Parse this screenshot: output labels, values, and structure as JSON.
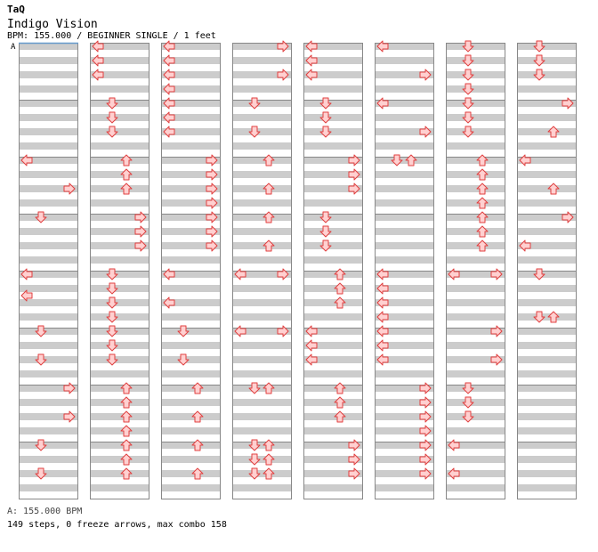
{
  "header": {
    "author": "TaQ",
    "title": "Indigo Vision",
    "meta": "BPM: 155.000 / BEGINNER SINGLE / 1 feet",
    "bpm_section_label": "A"
  },
  "footer": {
    "bpm_line": "A: 155.000 BPM",
    "stats": "149 steps, 0 freeze arrows, max combo 158"
  },
  "colors": {
    "stripe": "#cccccc",
    "border": "#888888",
    "arrow_fill": "#ffd0d0",
    "arrow_stroke": "#e04040",
    "bpm_marker": "#6699cc"
  },
  "arrow_legend": {
    "L": "left",
    "D": "down",
    "U": "up",
    "R": "right"
  },
  "chart_data": {
    "type": "table",
    "columns": 8,
    "measures_per_column": 8,
    "beats_per_measure": 4,
    "notes": [
      {
        "c": 0,
        "m": 2,
        "r": 0,
        "d": "L"
      },
      {
        "c": 0,
        "m": 2,
        "r": 4,
        "d": "R"
      },
      {
        "c": 0,
        "m": 3,
        "r": 0,
        "d": "D"
      },
      {
        "c": 0,
        "m": 4,
        "r": 0,
        "d": "L"
      },
      {
        "c": 0,
        "m": 4,
        "r": 3,
        "d": "L"
      },
      {
        "c": 0,
        "m": 5,
        "r": 0,
        "d": "D"
      },
      {
        "c": 0,
        "m": 5,
        "r": 4,
        "d": "D"
      },
      {
        "c": 0,
        "m": 6,
        "r": 0,
        "d": "R"
      },
      {
        "c": 0,
        "m": 6,
        "r": 4,
        "d": "R"
      },
      {
        "c": 0,
        "m": 7,
        "r": 0,
        "d": "D"
      },
      {
        "c": 0,
        "m": 7,
        "r": 4,
        "d": "D"
      },
      {
        "c": 1,
        "m": 0,
        "r": 0,
        "d": "L"
      },
      {
        "c": 1,
        "m": 0,
        "r": 2,
        "d": "L"
      },
      {
        "c": 1,
        "m": 0,
        "r": 4,
        "d": "L"
      },
      {
        "c": 1,
        "m": 1,
        "r": 0,
        "d": "D"
      },
      {
        "c": 1,
        "m": 1,
        "r": 2,
        "d": "D"
      },
      {
        "c": 1,
        "m": 1,
        "r": 4,
        "d": "D"
      },
      {
        "c": 1,
        "m": 2,
        "r": 0,
        "d": "U"
      },
      {
        "c": 1,
        "m": 2,
        "r": 2,
        "d": "U"
      },
      {
        "c": 1,
        "m": 2,
        "r": 4,
        "d": "U"
      },
      {
        "c": 1,
        "m": 3,
        "r": 0,
        "d": "R"
      },
      {
        "c": 1,
        "m": 3,
        "r": 2,
        "d": "R"
      },
      {
        "c": 1,
        "m": 3,
        "r": 4,
        "d": "R"
      },
      {
        "c": 1,
        "m": 4,
        "r": 0,
        "d": "D"
      },
      {
        "c": 1,
        "m": 4,
        "r": 2,
        "d": "D"
      },
      {
        "c": 1,
        "m": 4,
        "r": 4,
        "d": "D"
      },
      {
        "c": 1,
        "m": 4,
        "r": 6,
        "d": "D"
      },
      {
        "c": 1,
        "m": 5,
        "r": 0,
        "d": "D"
      },
      {
        "c": 1,
        "m": 5,
        "r": 2,
        "d": "D"
      },
      {
        "c": 1,
        "m": 5,
        "r": 4,
        "d": "D"
      },
      {
        "c": 1,
        "m": 6,
        "r": 0,
        "d": "U"
      },
      {
        "c": 1,
        "m": 6,
        "r": 2,
        "d": "U"
      },
      {
        "c": 1,
        "m": 6,
        "r": 4,
        "d": "U"
      },
      {
        "c": 1,
        "m": 6,
        "r": 6,
        "d": "U"
      },
      {
        "c": 1,
        "m": 7,
        "r": 0,
        "d": "U"
      },
      {
        "c": 1,
        "m": 7,
        "r": 2,
        "d": "U"
      },
      {
        "c": 1,
        "m": 7,
        "r": 4,
        "d": "U"
      },
      {
        "c": 2,
        "m": 0,
        "r": 0,
        "d": "L"
      },
      {
        "c": 2,
        "m": 0,
        "r": 2,
        "d": "L"
      },
      {
        "c": 2,
        "m": 0,
        "r": 4,
        "d": "L"
      },
      {
        "c": 2,
        "m": 0,
        "r": 6,
        "d": "L"
      },
      {
        "c": 2,
        "m": 1,
        "r": 0,
        "d": "L"
      },
      {
        "c": 2,
        "m": 1,
        "r": 2,
        "d": "L"
      },
      {
        "c": 2,
        "m": 1,
        "r": 4,
        "d": "L"
      },
      {
        "c": 2,
        "m": 2,
        "r": 0,
        "d": "R"
      },
      {
        "c": 2,
        "m": 2,
        "r": 2,
        "d": "R"
      },
      {
        "c": 2,
        "m": 2,
        "r": 4,
        "d": "R"
      },
      {
        "c": 2,
        "m": 2,
        "r": 6,
        "d": "R"
      },
      {
        "c": 2,
        "m": 3,
        "r": 0,
        "d": "R"
      },
      {
        "c": 2,
        "m": 3,
        "r": 2,
        "d": "R"
      },
      {
        "c": 2,
        "m": 3,
        "r": 4,
        "d": "R"
      },
      {
        "c": 2,
        "m": 4,
        "r": 0,
        "d": "L"
      },
      {
        "c": 2,
        "m": 4,
        "r": 4,
        "d": "L"
      },
      {
        "c": 2,
        "m": 5,
        "r": 0,
        "d": "D"
      },
      {
        "c": 2,
        "m": 5,
        "r": 4,
        "d": "D"
      },
      {
        "c": 2,
        "m": 6,
        "r": 0,
        "d": "U"
      },
      {
        "c": 2,
        "m": 6,
        "r": 4,
        "d": "U"
      },
      {
        "c": 2,
        "m": 7,
        "r": 0,
        "d": "U"
      },
      {
        "c": 2,
        "m": 7,
        "r": 4,
        "d": "U"
      },
      {
        "c": 3,
        "m": 0,
        "r": 0,
        "d": "R"
      },
      {
        "c": 3,
        "m": 0,
        "r": 4,
        "d": "R"
      },
      {
        "c": 3,
        "m": 1,
        "r": 0,
        "d": "D"
      },
      {
        "c": 3,
        "m": 1,
        "r": 4,
        "d": "D"
      },
      {
        "c": 3,
        "m": 2,
        "r": 0,
        "d": "U"
      },
      {
        "c": 3,
        "m": 2,
        "r": 4,
        "d": "U"
      },
      {
        "c": 3,
        "m": 3,
        "r": 0,
        "d": "U"
      },
      {
        "c": 3,
        "m": 3,
        "r": 4,
        "d": "U"
      },
      {
        "c": 3,
        "m": 4,
        "r": 0,
        "d": "L"
      },
      {
        "c": 3,
        "m": 4,
        "r": 0,
        "d": "R"
      },
      {
        "c": 3,
        "m": 5,
        "r": 0,
        "d": "L"
      },
      {
        "c": 3,
        "m": 5,
        "r": 0,
        "d": "R"
      },
      {
        "c": 3,
        "m": 6,
        "r": 0,
        "d": "D"
      },
      {
        "c": 3,
        "m": 6,
        "r": 0,
        "d": "U"
      },
      {
        "c": 3,
        "m": 7,
        "r": 0,
        "d": "D"
      },
      {
        "c": 3,
        "m": 7,
        "r": 0,
        "d": "U"
      },
      {
        "c": 3,
        "m": 7,
        "r": 2,
        "d": "D"
      },
      {
        "c": 3,
        "m": 7,
        "r": 2,
        "d": "U"
      },
      {
        "c": 3,
        "m": 7,
        "r": 4,
        "d": "D"
      },
      {
        "c": 3,
        "m": 7,
        "r": 4,
        "d": "U"
      },
      {
        "c": 4,
        "m": 0,
        "r": 0,
        "d": "L"
      },
      {
        "c": 4,
        "m": 0,
        "r": 2,
        "d": "L"
      },
      {
        "c": 4,
        "m": 0,
        "r": 4,
        "d": "L"
      },
      {
        "c": 4,
        "m": 1,
        "r": 0,
        "d": "D"
      },
      {
        "c": 4,
        "m": 1,
        "r": 2,
        "d": "D"
      },
      {
        "c": 4,
        "m": 1,
        "r": 4,
        "d": "D"
      },
      {
        "c": 4,
        "m": 2,
        "r": 0,
        "d": "R"
      },
      {
        "c": 4,
        "m": 2,
        "r": 2,
        "d": "R"
      },
      {
        "c": 4,
        "m": 2,
        "r": 4,
        "d": "R"
      },
      {
        "c": 4,
        "m": 3,
        "r": 0,
        "d": "D"
      },
      {
        "c": 4,
        "m": 3,
        "r": 2,
        "d": "D"
      },
      {
        "c": 4,
        "m": 3,
        "r": 4,
        "d": "D"
      },
      {
        "c": 4,
        "m": 4,
        "r": 0,
        "d": "U"
      },
      {
        "c": 4,
        "m": 4,
        "r": 2,
        "d": "U"
      },
      {
        "c": 4,
        "m": 4,
        "r": 4,
        "d": "U"
      },
      {
        "c": 4,
        "m": 5,
        "r": 0,
        "d": "L"
      },
      {
        "c": 4,
        "m": 5,
        "r": 2,
        "d": "L"
      },
      {
        "c": 4,
        "m": 5,
        "r": 4,
        "d": "L"
      },
      {
        "c": 4,
        "m": 6,
        "r": 0,
        "d": "U"
      },
      {
        "c": 4,
        "m": 6,
        "r": 2,
        "d": "U"
      },
      {
        "c": 4,
        "m": 6,
        "r": 4,
        "d": "U"
      },
      {
        "c": 4,
        "m": 7,
        "r": 0,
        "d": "R"
      },
      {
        "c": 4,
        "m": 7,
        "r": 2,
        "d": "R"
      },
      {
        "c": 4,
        "m": 7,
        "r": 4,
        "d": "R"
      },
      {
        "c": 5,
        "m": 0,
        "r": 0,
        "d": "L"
      },
      {
        "c": 5,
        "m": 0,
        "r": 4,
        "d": "R"
      },
      {
        "c": 5,
        "m": 1,
        "r": 0,
        "d": "L"
      },
      {
        "c": 5,
        "m": 1,
        "r": 4,
        "d": "R"
      },
      {
        "c": 5,
        "m": 2,
        "r": 0,
        "d": "D"
      },
      {
        "c": 5,
        "m": 2,
        "r": 0,
        "d": "U"
      },
      {
        "c": 5,
        "m": 4,
        "r": 0,
        "d": "L"
      },
      {
        "c": 5,
        "m": 4,
        "r": 2,
        "d": "L"
      },
      {
        "c": 5,
        "m": 4,
        "r": 4,
        "d": "L"
      },
      {
        "c": 5,
        "m": 4,
        "r": 6,
        "d": "L"
      },
      {
        "c": 5,
        "m": 5,
        "r": 0,
        "d": "L"
      },
      {
        "c": 5,
        "m": 5,
        "r": 2,
        "d": "L"
      },
      {
        "c": 5,
        "m": 5,
        "r": 4,
        "d": "L"
      },
      {
        "c": 5,
        "m": 6,
        "r": 0,
        "d": "R"
      },
      {
        "c": 5,
        "m": 6,
        "r": 2,
        "d": "R"
      },
      {
        "c": 5,
        "m": 6,
        "r": 4,
        "d": "R"
      },
      {
        "c": 5,
        "m": 6,
        "r": 6,
        "d": "R"
      },
      {
        "c": 5,
        "m": 7,
        "r": 0,
        "d": "R"
      },
      {
        "c": 5,
        "m": 7,
        "r": 2,
        "d": "R"
      },
      {
        "c": 5,
        "m": 7,
        "r": 4,
        "d": "R"
      },
      {
        "c": 6,
        "m": 0,
        "r": 0,
        "d": "D"
      },
      {
        "c": 6,
        "m": 0,
        "r": 2,
        "d": "D"
      },
      {
        "c": 6,
        "m": 0,
        "r": 4,
        "d": "D"
      },
      {
        "c": 6,
        "m": 0,
        "r": 6,
        "d": "D"
      },
      {
        "c": 6,
        "m": 1,
        "r": 0,
        "d": "D"
      },
      {
        "c": 6,
        "m": 1,
        "r": 2,
        "d": "D"
      },
      {
        "c": 6,
        "m": 1,
        "r": 4,
        "d": "D"
      },
      {
        "c": 6,
        "m": 2,
        "r": 0,
        "d": "U"
      },
      {
        "c": 6,
        "m": 2,
        "r": 2,
        "d": "U"
      },
      {
        "c": 6,
        "m": 2,
        "r": 4,
        "d": "U"
      },
      {
        "c": 6,
        "m": 2,
        "r": 6,
        "d": "U"
      },
      {
        "c": 6,
        "m": 3,
        "r": 0,
        "d": "U"
      },
      {
        "c": 6,
        "m": 3,
        "r": 2,
        "d": "U"
      },
      {
        "c": 6,
        "m": 3,
        "r": 4,
        "d": "U"
      },
      {
        "c": 6,
        "m": 4,
        "r": 0,
        "d": "L"
      },
      {
        "c": 6,
        "m": 4,
        "r": 0,
        "d": "R"
      },
      {
        "c": 6,
        "m": 5,
        "r": 0,
        "d": "R"
      },
      {
        "c": 6,
        "m": 5,
        "r": 4,
        "d": "R"
      },
      {
        "c": 6,
        "m": 6,
        "r": 0,
        "d": "D"
      },
      {
        "c": 6,
        "m": 6,
        "r": 2,
        "d": "D"
      },
      {
        "c": 6,
        "m": 6,
        "r": 4,
        "d": "D"
      },
      {
        "c": 6,
        "m": 7,
        "r": 0,
        "d": "L"
      },
      {
        "c": 6,
        "m": 7,
        "r": 4,
        "d": "L"
      },
      {
        "c": 7,
        "m": 0,
        "r": 0,
        "d": "D"
      },
      {
        "c": 7,
        "m": 0,
        "r": 2,
        "d": "D"
      },
      {
        "c": 7,
        "m": 0,
        "r": 4,
        "d": "D"
      },
      {
        "c": 7,
        "m": 1,
        "r": 0,
        "d": "R"
      },
      {
        "c": 7,
        "m": 1,
        "r": 4,
        "d": "U"
      },
      {
        "c": 7,
        "m": 2,
        "r": 0,
        "d": "L"
      },
      {
        "c": 7,
        "m": 2,
        "r": 4,
        "d": "U"
      },
      {
        "c": 7,
        "m": 3,
        "r": 0,
        "d": "R"
      },
      {
        "c": 7,
        "m": 3,
        "r": 4,
        "d": "L"
      },
      {
        "c": 7,
        "m": 4,
        "r": 0,
        "d": "D"
      },
      {
        "c": 7,
        "m": 4,
        "r": 6,
        "d": "D"
      },
      {
        "c": 7,
        "m": 4,
        "r": 6,
        "d": "U"
      }
    ]
  }
}
